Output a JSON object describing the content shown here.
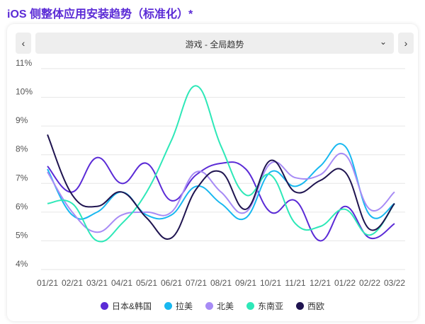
{
  "title": "iOS 侧整体应用安装趋势（标准化）*",
  "selector": {
    "label": "游戏 - 全局趋势"
  },
  "icons": {
    "prev": "chevron-left-icon",
    "next": "chevron-right-icon",
    "dropdown": "chevron-down-icon"
  },
  "chart_data": {
    "type": "line",
    "x": [
      "01/21",
      "02/21",
      "03/21",
      "04/21",
      "05/21",
      "06/21",
      "07/21",
      "08/21",
      "09/21",
      "10/21",
      "11/21",
      "12/21",
      "01/22",
      "02/22",
      "03/22"
    ],
    "ylim": [
      4,
      11
    ],
    "ytick_labels": [
      "4%",
      "5%",
      "6%",
      "7%",
      "8%",
      "9%",
      "10%",
      "11%"
    ],
    "series": [
      {
        "name": "日本&韩国",
        "color": "#5b2bd6",
        "values": [
          7.6,
          6.7,
          7.9,
          7.0,
          7.7,
          6.4,
          7.3,
          7.7,
          7.5,
          6.0,
          6.4,
          5.0,
          6.2,
          5.1,
          5.6
        ]
      },
      {
        "name": "拉美",
        "color": "#18b8f0",
        "values": [
          7.5,
          5.9,
          6.0,
          6.7,
          5.9,
          5.9,
          6.9,
          6.3,
          5.8,
          7.4,
          6.9,
          7.6,
          8.3,
          5.9,
          6.3
        ]
      },
      {
        "name": "北美",
        "color": "#a78bf5",
        "values": [
          7.4,
          6.0,
          5.3,
          5.9,
          6.0,
          6.0,
          7.4,
          6.7,
          6.0,
          7.7,
          7.2,
          7.3,
          8.0,
          6.1,
          6.7
        ]
      },
      {
        "name": "东南亚",
        "color": "#2ee8b8",
        "values": [
          6.3,
          6.3,
          5.0,
          5.6,
          6.7,
          8.5,
          10.4,
          8.3,
          6.6,
          7.3,
          5.6,
          5.5,
          6.1,
          5.2,
          6.3
        ]
      },
      {
        "name": "西欧",
        "color": "#1f1450",
        "values": [
          8.7,
          6.6,
          6.2,
          6.7,
          5.8,
          5.1,
          6.8,
          7.4,
          6.1,
          7.8,
          6.7,
          7.1,
          7.4,
          5.4,
          6.3
        ]
      }
    ],
    "grid": true,
    "legend": "bottom"
  }
}
